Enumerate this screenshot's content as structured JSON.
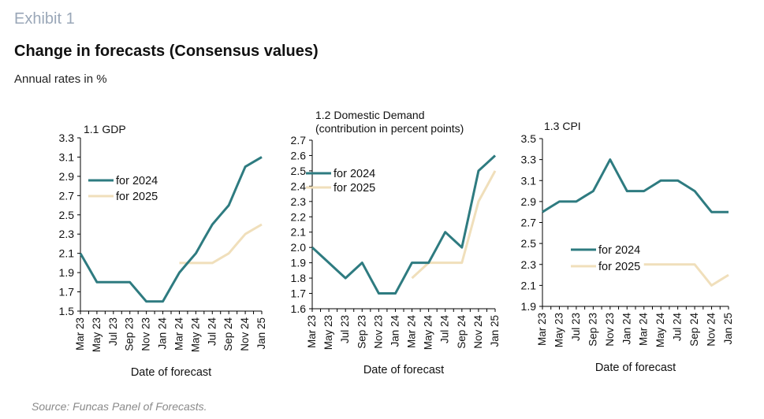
{
  "header": {
    "exhibit": "Exhibit 1",
    "title": "Change in forecasts (Consensus values)",
    "subtitle": "Annual rates in %"
  },
  "footer": {
    "source": "Source: Funcas Panel of Forecasts."
  },
  "colors": {
    "series_2024": "#2e7b80",
    "series_2025": "#f0dfbb",
    "axis": "#000000"
  },
  "chart_data": [
    {
      "type": "line",
      "title": "1.1 GDP",
      "xlabel": "Date of forecast",
      "ylabel": "",
      "categories": [
        "Mar 23",
        "May 23",
        "Jul 23",
        "Sep 23",
        "Nov 23",
        "Jan 24",
        "Mar 24",
        "May 24",
        "Jul 24",
        "Sep 24",
        "Nov 24",
        "Jan 25"
      ],
      "ylim": [
        1.5,
        3.3
      ],
      "yticks": [
        1.5,
        1.7,
        1.9,
        2.1,
        2.3,
        2.5,
        2.7,
        2.9,
        3.1,
        3.3
      ],
      "x": [
        "Mar 23",
        "Apr 23",
        "May 23",
        "Jun 23",
        "Jul 23",
        "Aug 23",
        "Sep 23",
        "Oct 23",
        "Nov 23",
        "Dec 23",
        "Jan 24",
        "Feb 24",
        "Mar 24",
        "Apr 24",
        "May 24",
        "Jun 24",
        "Jul 24",
        "Aug 24",
        "Sep 24",
        "Oct 24",
        "Nov 24",
        "Dec 24",
        "Jan 25"
      ],
      "series": [
        {
          "name": "for 2024",
          "values": [
            2.1,
            1.95,
            1.8,
            1.8,
            1.8,
            1.8,
            1.8,
            1.7,
            1.6,
            1.6,
            1.6,
            1.75,
            1.9,
            2.0,
            2.1,
            2.25,
            2.4,
            2.5,
            2.6,
            2.8,
            3.0,
            3.05,
            3.1
          ]
        },
        {
          "name": "for 2025",
          "values": [
            null,
            null,
            null,
            null,
            null,
            null,
            null,
            null,
            null,
            null,
            null,
            null,
            2.0,
            2.0,
            2.0,
            2.0,
            2.0,
            2.05,
            2.1,
            2.2,
            2.3,
            2.35,
            2.4
          ]
        }
      ],
      "legend": "upper-left"
    },
    {
      "type": "line",
      "title": "1.2 Domestic Demand",
      "title2": "(contribution in percent points)",
      "xlabel": "Date of forecast",
      "ylabel": "",
      "categories": [
        "Mar 23",
        "May 23",
        "Jul 23",
        "Sep 23",
        "Nov 23",
        "Jan 24",
        "Mar 24",
        "May 24",
        "Jul 24",
        "Sep 24",
        "Nov 24",
        "Jan 25"
      ],
      "ylim": [
        1.6,
        2.7
      ],
      "yticks": [
        1.6,
        1.7,
        1.8,
        1.9,
        2.0,
        2.1,
        2.2,
        2.3,
        2.4,
        2.5,
        2.6,
        2.7
      ],
      "x": [
        "Mar 23",
        "Apr 23",
        "May 23",
        "Jun 23",
        "Jul 23",
        "Aug 23",
        "Sep 23",
        "Oct 23",
        "Nov 23",
        "Dec 23",
        "Jan 24",
        "Feb 24",
        "Mar 24",
        "Apr 24",
        "May 24",
        "Jun 24",
        "Jul 24",
        "Aug 24",
        "Sep 24",
        "Oct 24",
        "Nov 24",
        "Dec 24",
        "Jan 25"
      ],
      "series": [
        {
          "name": "for 2024",
          "values": [
            2.0,
            1.95,
            1.9,
            1.85,
            1.8,
            1.85,
            1.9,
            1.8,
            1.7,
            1.7,
            1.7,
            1.8,
            1.9,
            1.9,
            1.9,
            2.0,
            2.1,
            2.05,
            2.0,
            2.25,
            2.5,
            2.55,
            2.6
          ]
        },
        {
          "name": "for 2025",
          "values": [
            null,
            null,
            null,
            null,
            null,
            null,
            null,
            null,
            null,
            null,
            null,
            null,
            1.8,
            1.85,
            1.9,
            1.9,
            1.9,
            1.9,
            1.9,
            2.1,
            2.3,
            2.4,
            2.5
          ]
        }
      ],
      "legend": "upper-left"
    },
    {
      "type": "line",
      "title": "1.3 CPI",
      "xlabel": "Date of forecast",
      "ylabel": "",
      "categories": [
        "Mar 23",
        "May 23",
        "Jul 23",
        "Sep 23",
        "Nov 23",
        "Jan 24",
        "Mar 24",
        "May 24",
        "Jul 24",
        "Sep 24",
        "Nov 24",
        "Jan 25"
      ],
      "ylim": [
        1.9,
        3.5
      ],
      "yticks": [
        1.9,
        2.1,
        2.3,
        2.5,
        2.7,
        2.9,
        3.1,
        3.3,
        3.5
      ],
      "x": [
        "Mar 23",
        "Apr 23",
        "May 23",
        "Jun 23",
        "Jul 23",
        "Aug 23",
        "Sep 23",
        "Oct 23",
        "Nov 23",
        "Dec 23",
        "Jan 24",
        "Feb 24",
        "Mar 24",
        "Apr 24",
        "May 24",
        "Jun 24",
        "Jul 24",
        "Aug 24",
        "Sep 24",
        "Oct 24",
        "Nov 24",
        "Dec 24",
        "Jan 25"
      ],
      "series": [
        {
          "name": "for 2024",
          "values": [
            2.8,
            2.85,
            2.9,
            2.9,
            2.9,
            2.95,
            3.0,
            3.15,
            3.3,
            3.15,
            3.0,
            3.0,
            3.0,
            3.05,
            3.1,
            3.1,
            3.1,
            3.05,
            3.0,
            2.9,
            2.8,
            2.8,
            2.8
          ]
        },
        {
          "name": "for 2025",
          "values": [
            null,
            null,
            null,
            null,
            null,
            null,
            null,
            null,
            null,
            null,
            null,
            null,
            2.3,
            2.3,
            2.3,
            2.3,
            2.3,
            2.3,
            2.3,
            2.2,
            2.1,
            2.15,
            2.2
          ]
        }
      ],
      "legend": "lower-left"
    }
  ]
}
